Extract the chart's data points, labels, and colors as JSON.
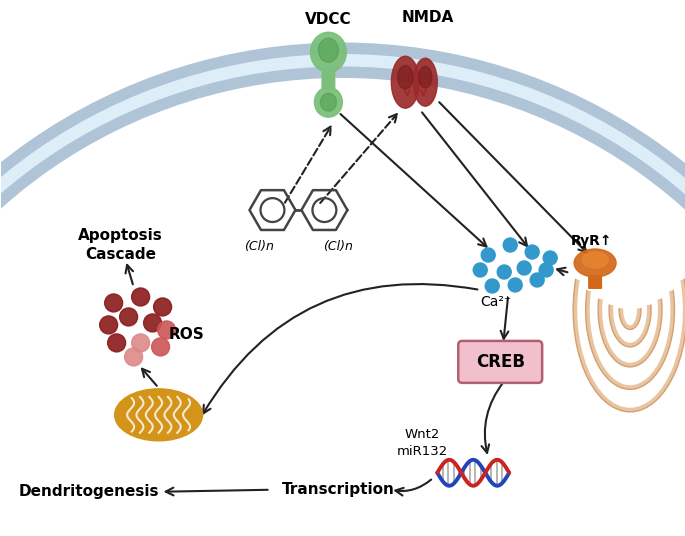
{
  "bg_color": "#ffffff",
  "mem_color1": "#b8cfe0",
  "mem_color2": "#ddeaf5",
  "vdcc_label": "VDCC",
  "nmda_label": "NMDA",
  "ca_label": "Ca²⁺",
  "ryr_label": "RyR↑",
  "creb_label": "CREB",
  "ros_label": "ROS",
  "apoptosis_label": "Apoptosis\nCascade",
  "transcription_label": "Transcription",
  "dendritogenesis_label": "Dendritogenesis",
  "wnt2_label": "Wnt2\nmiR132",
  "cl_label_left": "(Cl)n",
  "cl_label_right": "(Cl)n",
  "vdcc_green": "#7bbf7b",
  "vdcc_green_dark": "#4a9a4a",
  "nmda_red": "#9b2b2b",
  "nmda_red_dark": "#7a1a1a",
  "ca_color": "#3399cc",
  "ryr_color": "#d4681a",
  "creb_bg": "#f2c0cc",
  "creb_border": "#b06070",
  "ros_dark": "#8b1a1a",
  "ros_light": "#cc5555",
  "ros_pink": "#dd8888",
  "mito_color": "#d4941a",
  "mito_inner": "#e8b040",
  "dna_blue": "#2244bb",
  "dna_red": "#cc2222",
  "er_color": "#e8c4a0",
  "er_stroke": "#d4a070",
  "biphenyl_color": "#444444",
  "arrow_color": "#222222"
}
